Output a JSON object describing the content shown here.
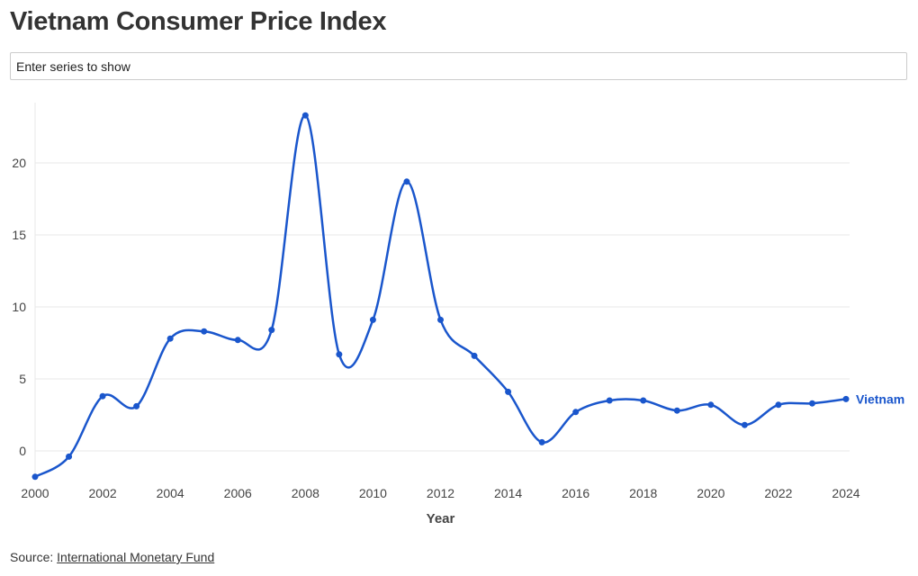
{
  "header": {
    "title": "Vietnam Consumer Price Index"
  },
  "search": {
    "placeholder": "Enter series to show"
  },
  "source": {
    "prefix": "Source: ",
    "link_text": "International Monetary Fund"
  },
  "colors": {
    "series": "#1a56cc",
    "grid": "#e8e8e8",
    "axis_text": "#444444"
  },
  "chart_data": {
    "type": "line",
    "title": "Vietnam Consumer Price Index",
    "xlabel": "Year",
    "ylabel": "",
    "xlim": [
      2000,
      2024
    ],
    "ylim": [
      -2,
      24
    ],
    "x_ticks": [
      "2000",
      "2002",
      "2004",
      "2006",
      "2008",
      "2010",
      "2012",
      "2014",
      "2016",
      "2018",
      "2020",
      "2022",
      "2024"
    ],
    "y_ticks": [
      "0",
      "5",
      "10",
      "15",
      "20"
    ],
    "grid": true,
    "series": [
      {
        "name": "Vietnam",
        "x": [
          2000,
          2001,
          2002,
          2003,
          2004,
          2005,
          2006,
          2007,
          2008,
          2009,
          2010,
          2011,
          2012,
          2013,
          2014,
          2015,
          2016,
          2017,
          2018,
          2019,
          2020,
          2021,
          2022,
          2023,
          2024
        ],
        "values": [
          -1.8,
          -0.4,
          3.8,
          3.1,
          7.8,
          8.3,
          7.7,
          8.4,
          23.3,
          6.7,
          9.1,
          18.7,
          9.1,
          6.6,
          4.1,
          0.6,
          2.7,
          3.5,
          3.5,
          2.8,
          3.2,
          1.8,
          3.2,
          3.3,
          3.6
        ]
      }
    ]
  }
}
